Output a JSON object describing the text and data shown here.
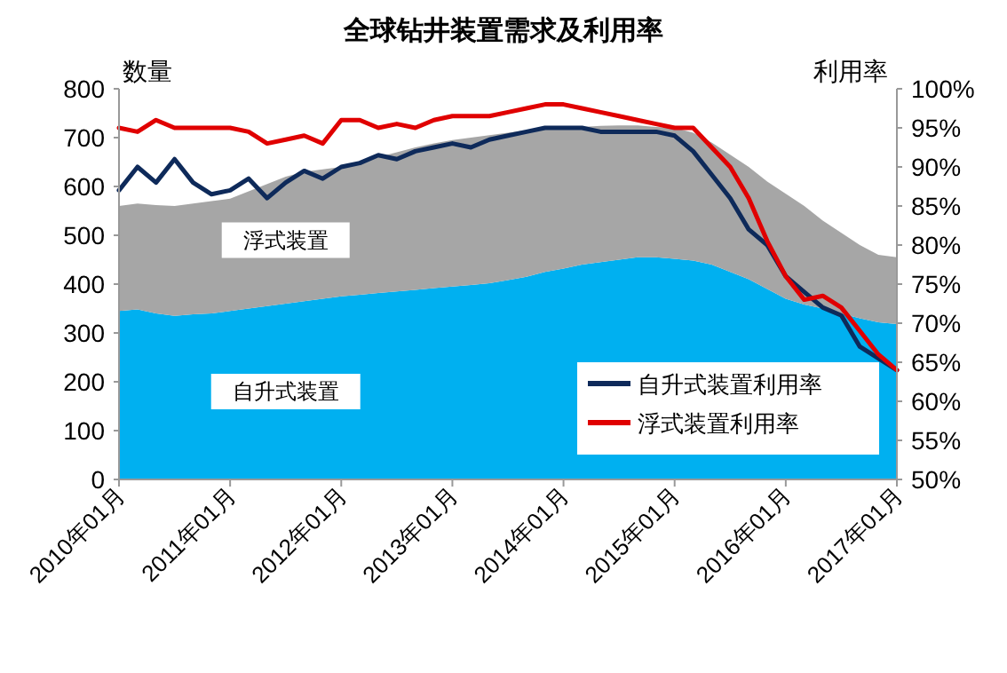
{
  "chart_data": {
    "type": "area",
    "title": "全球钻井装置需求及利用率",
    "ylabel": "数量",
    "y2label": "利用率",
    "stacked": true,
    "legend": "bottom right",
    "grid": false,
    "x": [
      "2010-01",
      "2010-03",
      "2010-05",
      "2010-07",
      "2010-09",
      "2010-11",
      "2011-01",
      "2011-03",
      "2011-05",
      "2011-07",
      "2011-09",
      "2011-11",
      "2012-01",
      "2012-03",
      "2012-05",
      "2012-07",
      "2012-09",
      "2012-11",
      "2013-01",
      "2013-03",
      "2013-05",
      "2013-07",
      "2013-09",
      "2013-11",
      "2014-01",
      "2014-03",
      "2014-05",
      "2014-07",
      "2014-09",
      "2014-11",
      "2015-01",
      "2015-03",
      "2015-05",
      "2015-07",
      "2015-09",
      "2015-11",
      "2016-01",
      "2016-03",
      "2016-05",
      "2016-07",
      "2016-09",
      "2016-11",
      "2017-01"
    ],
    "xlim": [
      "2010-01",
      "2017-01"
    ],
    "xticks": [
      {
        "value": "2010-01",
        "label": "2010年01月"
      },
      {
        "value": "2011-01",
        "label": "2011年01月"
      },
      {
        "value": "2012-01",
        "label": "2012年01月"
      },
      {
        "value": "2013-01",
        "label": "2013年01月"
      },
      {
        "value": "2014-01",
        "label": "2014年01月"
      },
      {
        "value": "2015-01",
        "label": "2015年01月"
      },
      {
        "value": "2016-01",
        "label": "2016年01月"
      },
      {
        "value": "2017-01",
        "label": "2017年01月"
      }
    ],
    "ylim": [
      0,
      800
    ],
    "yticks": [
      0,
      100,
      200,
      300,
      400,
      500,
      600,
      700,
      800
    ],
    "y2lim": [
      50,
      100
    ],
    "y2ticks": [
      {
        "value": 50,
        "label": "50%"
      },
      {
        "value": 55,
        "label": "55%"
      },
      {
        "value": 60,
        "label": "60%"
      },
      {
        "value": 65,
        "label": "65%"
      },
      {
        "value": 70,
        "label": "70%"
      },
      {
        "value": 75,
        "label": "75%"
      },
      {
        "value": 80,
        "label": "80%"
      },
      {
        "value": 85,
        "label": "85%"
      },
      {
        "value": 90,
        "label": "90%"
      },
      {
        "value": 95,
        "label": "95%"
      },
      {
        "value": 100,
        "label": "100%"
      }
    ],
    "series": [
      {
        "name": "自升式装置",
        "color": "#00b0f0",
        "values": [
          345,
          348,
          340,
          335,
          338,
          340,
          345,
          350,
          355,
          360,
          365,
          370,
          375,
          378,
          382,
          385,
          388,
          392,
          395,
          398,
          402,
          408,
          415,
          425,
          432,
          440,
          445,
          450,
          455,
          455,
          452,
          448,
          440,
          425,
          410,
          390,
          370,
          358,
          350,
          340,
          330,
          322,
          318
        ]
      },
      {
        "name": "浮式装置",
        "color": "#a6a6a6",
        "values": [
          215,
          217,
          222,
          225,
          227,
          230,
          230,
          240,
          250,
          260,
          265,
          265,
          265,
          272,
          278,
          285,
          292,
          296,
          300,
          302,
          303,
          302,
          300,
          293,
          288,
          282,
          279,
          275,
          270,
          267,
          268,
          262,
          250,
          240,
          230,
          220,
          215,
          202,
          180,
          165,
          150,
          138,
          137
        ]
      },
      {
        "name": "自升式装置利用率",
        "type": "line",
        "axis": "y2",
        "color": "#0e2a5a",
        "values": [
          87,
          90,
          88,
          91,
          88,
          86.5,
          87,
          88.5,
          86,
          88,
          89.5,
          88.5,
          90,
          90.5,
          91.5,
          91,
          92,
          92.5,
          93,
          92.5,
          93.5,
          94,
          94.5,
          95,
          95,
          95,
          94.5,
          94.5,
          94.5,
          94.5,
          94,
          92,
          89,
          86,
          82,
          80,
          76,
          74,
          72,
          71,
          67,
          65.5,
          64
        ]
      },
      {
        "name": "浮式装置利用率",
        "type": "line",
        "axis": "y2",
        "color": "#e00000",
        "values": [
          95,
          94.5,
          96,
          95,
          95,
          95,
          95,
          94.5,
          93,
          93.5,
          94,
          93,
          96,
          96,
          95,
          95.5,
          95,
          96,
          96.5,
          96.5,
          96.5,
          97,
          97.5,
          98,
          98,
          97.5,
          97,
          96.5,
          96,
          95.5,
          95,
          95,
          92.5,
          90,
          86,
          80.5,
          76,
          73,
          73.5,
          72,
          69,
          66,
          64
        ]
      }
    ]
  }
}
